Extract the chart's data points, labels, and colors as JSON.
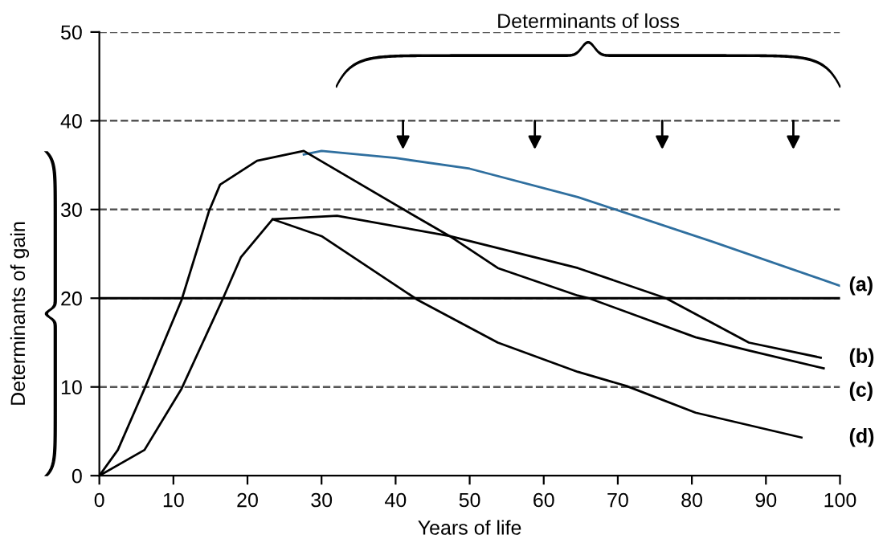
{
  "chart_data": {
    "type": "line",
    "xlabel": "Years of life",
    "ylabel": "Determinants of gain",
    "xlim": [
      0,
      100
    ],
    "ylim": [
      0,
      50
    ],
    "xticks": [
      0,
      10,
      20,
      30,
      40,
      50,
      60,
      70,
      80,
      90,
      100
    ],
    "yticks": [
      0,
      10,
      20,
      30,
      40,
      50
    ],
    "grid": "y",
    "marker": "none",
    "line_style": "solid",
    "ref_lines": [
      {
        "axis": "y",
        "value": 20,
        "label": null,
        "color": "#000000",
        "line_style": "solid"
      }
    ],
    "annotations": [
      "Determinants of loss"
    ],
    "series": [
      {
        "name": "(a)",
        "color": "#2f6f9f",
        "x": [
          27.6,
          30,
          40,
          50,
          64.6,
          82.7,
          100
        ],
        "values": [
          36.2,
          36.6,
          35.8,
          34.6,
          31.4,
          26.4,
          21.4
        ]
      },
      {
        "name": "(b)",
        "color": "#000000",
        "x": [
          0,
          6.1,
          11.1,
          16.6,
          19.1,
          23.4,
          32.1,
          47.3,
          64.6,
          76.5,
          87.7,
          97.4
        ],
        "values": [
          0,
          2.9,
          9.8,
          19.8,
          24.6,
          28.9,
          29.3,
          27.0,
          23.4,
          20.0,
          15.0,
          13.3
        ]
      },
      {
        "name": "(c)",
        "color": "#000000",
        "x": [
          0,
          2.5,
          6.1,
          11.1,
          14.8,
          16.3,
          21.3,
          27.6,
          41.5,
          47.3,
          53.8,
          64.6,
          66.1,
          80.5,
          87.7,
          97.8
        ],
        "values": [
          0,
          2.9,
          9.8,
          19.8,
          29.8,
          32.8,
          35.5,
          36.6,
          29.8,
          27.0,
          23.4,
          20.3,
          20.0,
          15.6,
          14.1,
          12.1
        ]
      },
      {
        "name": "(d)",
        "color": "#000000",
        "x": [
          23.4,
          30,
          43,
          53.8,
          64.6,
          71.2,
          80.5,
          94.8
        ],
        "values": [
          28.9,
          27.0,
          19.8,
          15.0,
          11.7,
          10.1,
          7.1,
          4.3
        ]
      }
    ]
  }
}
